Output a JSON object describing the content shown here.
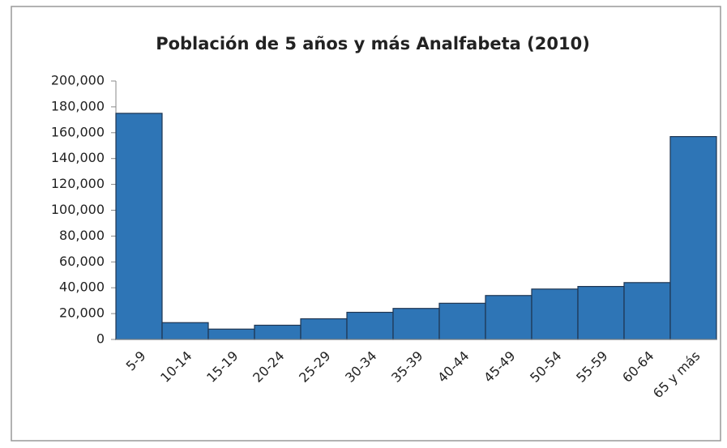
{
  "chart_data": {
    "type": "bar",
    "title": "Población de 5 años y más Analfabeta (2010)",
    "categories": [
      "5-9",
      "10-14",
      "15-19",
      "20-24",
      "25-29",
      "30-34",
      "35-39",
      "40-44",
      "45-49",
      "50-54",
      "55-59",
      "60-64",
      "65 y más"
    ],
    "values": [
      175000,
      13000,
      8000,
      11000,
      16000,
      21000,
      24000,
      28000,
      34000,
      39000,
      41000,
      44000,
      157000
    ],
    "color": "#2e75b6",
    "ylim": [
      0,
      200000
    ],
    "yticks": [
      0,
      {
        "value": 20000,
        "label": "20,000"
      },
      {
        "value": 40000,
        "label": "40,000"
      },
      {
        "value": 60000,
        "label": "60,000"
      },
      {
        "value": 80000,
        "label": "80,000"
      },
      {
        "value": 100000,
        "label": "100,000"
      },
      {
        "value": 120000,
        "label": "120,000"
      },
      {
        "value": 140000,
        "label": "140,000"
      },
      {
        "value": 160000,
        "label": "160,000"
      },
      {
        "value": 180000,
        "label": "180,000"
      },
      {
        "value": 200000,
        "label": "200,000"
      }
    ],
    "grid": false
  }
}
